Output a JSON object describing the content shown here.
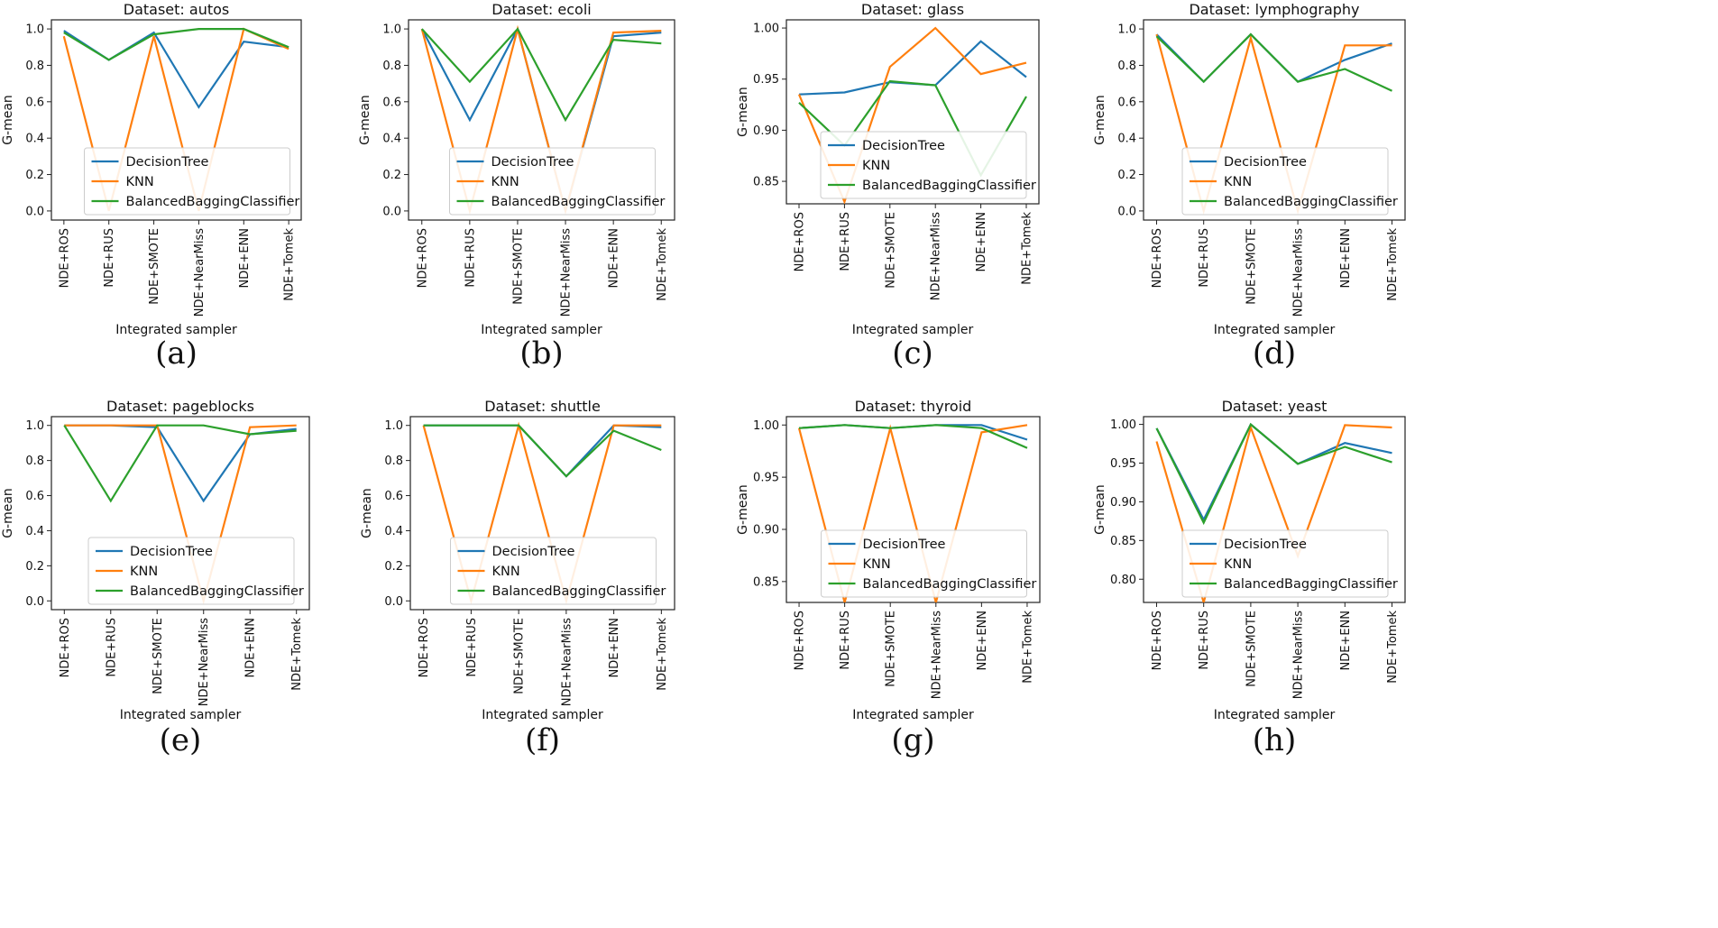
{
  "chart_data": [
    {
      "type": "line",
      "panel_label": "(a)",
      "title": "Dataset: autos",
      "xlabel": "Integrated sampler",
      "ylabel": "G-mean",
      "categories": [
        "NDE+ROS",
        "NDE+RUS",
        "NDE+SMOTE",
        "NDE+NearMiss",
        "NDE+ENN",
        "NDE+Tomek"
      ],
      "ylim": [
        -0.05,
        1.05
      ],
      "yticks": [
        "0.0",
        "0.2",
        "0.4",
        "0.6",
        "0.8",
        "1.0"
      ],
      "legend_loc": "lower center",
      "series": [
        {
          "name": "DecisionTree",
          "color": "#1f77b4",
          "values": [
            0.99,
            0.83,
            0.98,
            0.57,
            0.93,
            0.9
          ]
        },
        {
          "name": "KNN",
          "color": "#ff7f0e",
          "values": [
            0.96,
            0.0,
            0.96,
            0.0,
            1.0,
            0.89
          ]
        },
        {
          "name": "BalancedBaggingClassifier",
          "color": "#2ca02c",
          "values": [
            0.98,
            0.83,
            0.97,
            1.0,
            1.0,
            0.9
          ]
        }
      ]
    },
    {
      "type": "line",
      "panel_label": "(b)",
      "title": "Dataset: ecoli",
      "xlabel": "Integrated sampler",
      "ylabel": "G-mean",
      "categories": [
        "NDE+ROS",
        "NDE+RUS",
        "NDE+SMOTE",
        "NDE+NearMiss",
        "NDE+ENN",
        "NDE+Tomek"
      ],
      "ylim": [
        -0.05,
        1.05
      ],
      "yticks": [
        "0.0",
        "0.2",
        "0.4",
        "0.6",
        "0.8",
        "1.0"
      ],
      "legend_loc": "lower center",
      "series": [
        {
          "name": "DecisionTree",
          "color": "#1f77b4",
          "values": [
            1.0,
            0.5,
            1.0,
            0.0,
            0.96,
            0.98
          ]
        },
        {
          "name": "KNN",
          "color": "#ff7f0e",
          "values": [
            1.0,
            0.0,
            1.0,
            0.0,
            0.98,
            0.99
          ]
        },
        {
          "name": "BalancedBaggingClassifier",
          "color": "#2ca02c",
          "values": [
            1.0,
            0.71,
            1.0,
            0.5,
            0.94,
            0.92
          ]
        }
      ]
    },
    {
      "type": "line",
      "panel_label": "(c)",
      "title": "Dataset: glass",
      "xlabel": "Integrated sampler",
      "ylabel": "G-mean",
      "categories": [
        "NDE+ROS",
        "NDE+RUS",
        "NDE+SMOTE",
        "NDE+NearMiss",
        "NDE+ENN",
        "NDE+Tomek"
      ],
      "ylim": [
        0.828,
        1.008
      ],
      "yticks": [
        "0.85",
        "0.90",
        "0.95",
        "1.00"
      ],
      "legend_loc": "lower center",
      "series": [
        {
          "name": "DecisionTree",
          "color": "#1f77b4",
          "values": [
            0.935,
            0.937,
            0.947,
            0.944,
            0.987,
            0.952
          ]
        },
        {
          "name": "KNN",
          "color": "#ff7f0e",
          "values": [
            0.935,
            0.83,
            0.962,
            1.0,
            0.955,
            0.966
          ]
        },
        {
          "name": "BalancedBaggingClassifier",
          "color": "#2ca02c",
          "values": [
            0.927,
            0.885,
            0.948,
            0.944,
            0.856,
            0.933
          ]
        }
      ]
    },
    {
      "type": "line",
      "panel_label": "(d)",
      "title": "Dataset: lymphography",
      "xlabel": "Integrated sampler",
      "ylabel": "G-mean",
      "categories": [
        "NDE+ROS",
        "NDE+RUS",
        "NDE+SMOTE",
        "NDE+NearMiss",
        "NDE+ENN",
        "NDE+Tomek"
      ],
      "ylim": [
        -0.05,
        1.05
      ],
      "yticks": [
        "0.0",
        "0.2",
        "0.4",
        "0.6",
        "0.8",
        "1.0"
      ],
      "legend_loc": "lower center",
      "series": [
        {
          "name": "DecisionTree",
          "color": "#1f77b4",
          "values": [
            0.97,
            0.71,
            0.97,
            0.71,
            0.83,
            0.92
          ]
        },
        {
          "name": "KNN",
          "color": "#ff7f0e",
          "values": [
            0.97,
            0.0,
            0.95,
            0.0,
            0.91,
            0.91
          ]
        },
        {
          "name": "BalancedBaggingClassifier",
          "color": "#2ca02c",
          "values": [
            0.96,
            0.71,
            0.97,
            0.71,
            0.78,
            0.66
          ]
        }
      ]
    },
    {
      "type": "line",
      "panel_label": "(e)",
      "title": "Dataset: pageblocks",
      "xlabel": "Integrated sampler",
      "ylabel": "G-mean",
      "categories": [
        "NDE+ROS",
        "NDE+RUS",
        "NDE+SMOTE",
        "NDE+NearMiss",
        "NDE+ENN",
        "NDE+Tomek"
      ],
      "ylim": [
        -0.05,
        1.05
      ],
      "yticks": [
        "0.0",
        "0.2",
        "0.4",
        "0.6",
        "0.8",
        "1.0"
      ],
      "legend_loc": "lower center",
      "series": [
        {
          "name": "DecisionTree",
          "color": "#1f77b4",
          "values": [
            1.0,
            1.0,
            0.99,
            0.57,
            0.95,
            0.98
          ]
        },
        {
          "name": "KNN",
          "color": "#ff7f0e",
          "values": [
            1.0,
            1.0,
            1.0,
            0.0,
            0.99,
            1.0
          ]
        },
        {
          "name": "BalancedBaggingClassifier",
          "color": "#2ca02c",
          "values": [
            1.0,
            0.57,
            1.0,
            1.0,
            0.95,
            0.97
          ]
        }
      ]
    },
    {
      "type": "line",
      "panel_label": "(f)",
      "title": "Dataset: shuttle",
      "xlabel": "Integrated sampler",
      "ylabel": "G-mean",
      "categories": [
        "NDE+ROS",
        "NDE+RUS",
        "NDE+SMOTE",
        "NDE+NearMiss",
        "NDE+ENN",
        "NDE+Tomek"
      ],
      "ylim": [
        -0.05,
        1.05
      ],
      "yticks": [
        "0.0",
        "0.2",
        "0.4",
        "0.6",
        "0.8",
        "1.0"
      ],
      "legend_loc": "lower center",
      "series": [
        {
          "name": "DecisionTree",
          "color": "#1f77b4",
          "values": [
            1.0,
            1.0,
            1.0,
            0.71,
            1.0,
            0.99
          ]
        },
        {
          "name": "KNN",
          "color": "#ff7f0e",
          "values": [
            1.0,
            0.0,
            1.0,
            0.0,
            1.0,
            1.0
          ]
        },
        {
          "name": "BalancedBaggingClassifier",
          "color": "#2ca02c",
          "values": [
            1.0,
            1.0,
            1.0,
            0.71,
            0.97,
            0.86
          ]
        }
      ]
    },
    {
      "type": "line",
      "panel_label": "(g)",
      "title": "Dataset: thyroid",
      "xlabel": "Integrated sampler",
      "ylabel": "G-mean",
      "categories": [
        "NDE+ROS",
        "NDE+RUS",
        "NDE+SMOTE",
        "NDE+NearMiss",
        "NDE+ENN",
        "NDE+Tomek"
      ],
      "ylim": [
        0.83,
        1.008
      ],
      "yticks": [
        "0.85",
        "0.90",
        "0.95",
        "1.00"
      ],
      "legend_loc": "lower center",
      "series": [
        {
          "name": "DecisionTree",
          "color": "#1f77b4",
          "values": [
            0.997,
            1.0,
            0.997,
            1.0,
            1.0,
            0.986
          ]
        },
        {
          "name": "KNN",
          "color": "#ff7f0e",
          "values": [
            0.997,
            0.83,
            0.997,
            0.83,
            0.993,
            1.0
          ]
        },
        {
          "name": "BalancedBaggingClassifier",
          "color": "#2ca02c",
          "values": [
            0.997,
            1.0,
            0.997,
            1.0,
            0.997,
            0.978
          ]
        }
      ]
    },
    {
      "type": "line",
      "panel_label": "(h)",
      "title": "Dataset: yeast",
      "xlabel": "Integrated sampler",
      "ylabel": "G-mean",
      "categories": [
        "NDE+ROS",
        "NDE+RUS",
        "NDE+SMOTE",
        "NDE+NearMiss",
        "NDE+ENN",
        "NDE+Tomek"
      ],
      "ylim": [
        0.77,
        1.01
      ],
      "yticks": [
        "0.80",
        "0.85",
        "0.90",
        "0.95",
        "1.00"
      ],
      "legend_loc": "lower center",
      "series": [
        {
          "name": "DecisionTree",
          "color": "#1f77b4",
          "values": [
            0.995,
            0.877,
            1.0,
            0.949,
            0.976,
            0.963
          ]
        },
        {
          "name": "KNN",
          "color": "#ff7f0e",
          "values": [
            0.978,
            0.77,
            0.996,
            0.83,
            0.999,
            0.996
          ]
        },
        {
          "name": "BalancedBaggingClassifier",
          "color": "#2ca02c",
          "values": [
            0.995,
            0.873,
            1.0,
            0.949,
            0.971,
            0.951
          ]
        }
      ]
    }
  ]
}
